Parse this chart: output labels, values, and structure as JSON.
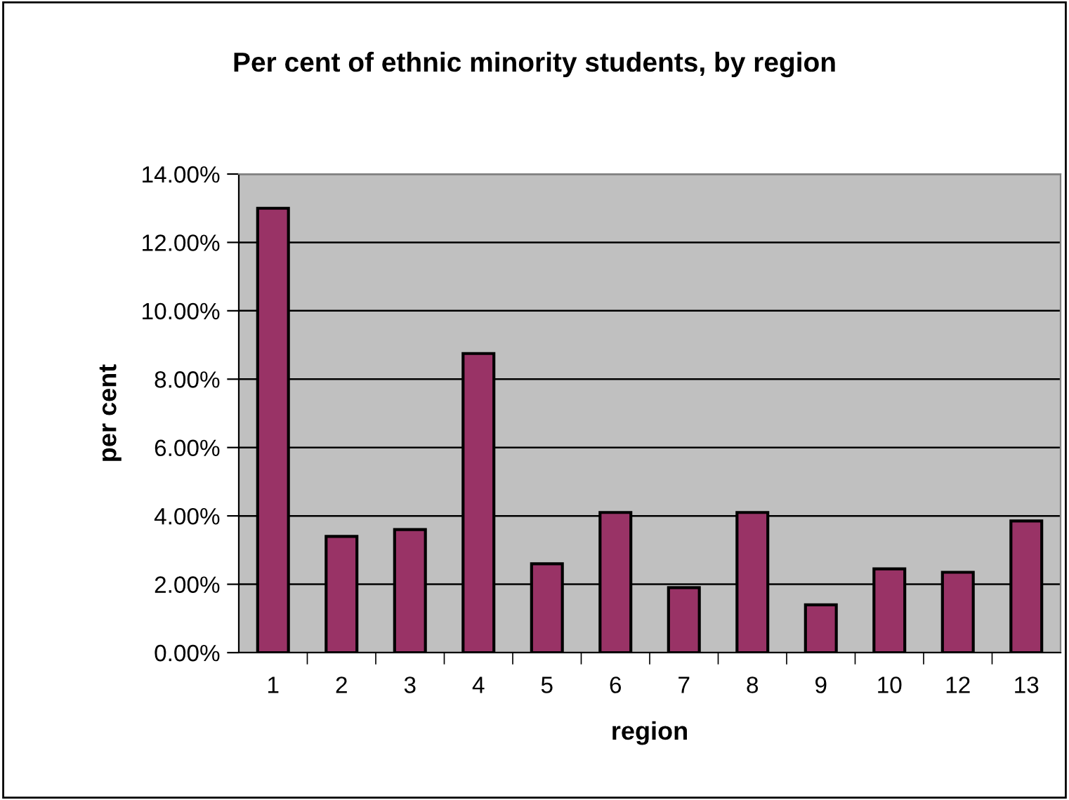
{
  "chart_data": {
    "type": "bar",
    "title": "Per cent of ethnic minority students, by region",
    "xlabel": "region",
    "ylabel": "per cent",
    "categories": [
      "1",
      "2",
      "3",
      "4",
      "5",
      "6",
      "7",
      "8",
      "9",
      "10",
      "12",
      "13"
    ],
    "values": [
      13.0,
      3.4,
      3.6,
      8.75,
      2.6,
      4.1,
      1.9,
      4.1,
      1.4,
      2.45,
      2.35,
      3.85
    ],
    "color": "#993366",
    "ylim": [
      0,
      14
    ],
    "yticks": [
      {
        "value": 0,
        "label": "0.00%"
      },
      {
        "value": 2,
        "label": "2.00%"
      },
      {
        "value": 4,
        "label": "4.00%"
      },
      {
        "value": 6,
        "label": "6.00%"
      },
      {
        "value": 8,
        "label": "8.00%"
      },
      {
        "value": 10,
        "label": "10.00%"
      },
      {
        "value": 12,
        "label": "12.00%"
      },
      {
        "value": 14,
        "label": "14.00%"
      }
    ],
    "grid": "y",
    "legend": false
  }
}
